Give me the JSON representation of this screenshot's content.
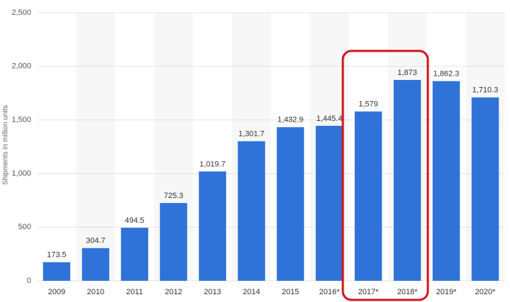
{
  "chart_data": {
    "type": "bar",
    "y_label": "Shipments in million units",
    "categories": [
      "2009",
      "2010",
      "2011",
      "2012",
      "2013",
      "2014",
      "2015",
      "2016*",
      "2017*",
      "2018*",
      "2019*",
      "2020*"
    ],
    "values": [
      173.5,
      304.7,
      494.5,
      725.3,
      1019.7,
      1301.7,
      1432.9,
      1445.4,
      1579,
      1873,
      1862.3,
      1710.3
    ],
    "value_labels": [
      "173.5",
      "304.7",
      "494.5",
      "725.3",
      "1,019.7",
      "1,301.7",
      "1,432.9",
      "1,445.4",
      "1,579",
      "1,873",
      "1,862.3",
      "1,710.3"
    ],
    "color": "#2f73d8",
    "ylim": [
      0,
      2500
    ],
    "yticks": [
      0,
      500,
      {
        "value": 1000,
        "label": "1,000"
      },
      {
        "value": 1500,
        "label": "1,500"
      },
      {
        "value": 2000,
        "label": "2,000"
      },
      {
        "value": 2500,
        "label": "2,500"
      }
    ],
    "grid": true
  }
}
